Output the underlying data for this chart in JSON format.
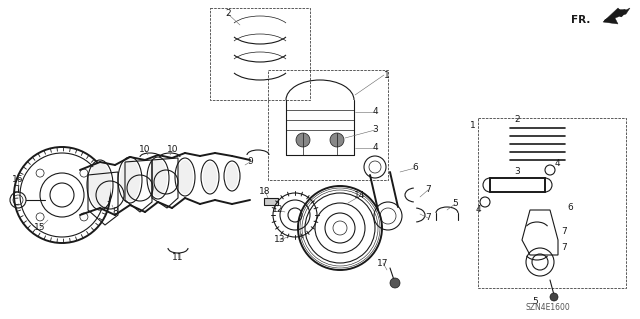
{
  "bg_color": "#ffffff",
  "line_color": "#1a1a1a",
  "label_color": "#1a1a1a",
  "figsize": [
    6.4,
    3.19
  ],
  "dpi": 100,
  "watermark": "SZN4E1600",
  "fr_label": "FR.",
  "lw": 0.8,
  "lw_thick": 1.4,
  "lw_thin": 0.5,
  "font_size": 6.0
}
